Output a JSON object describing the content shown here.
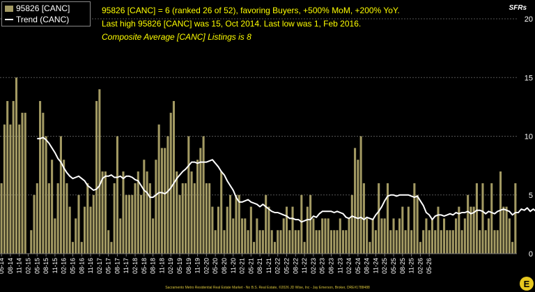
{
  "chart_data": {
    "type": "bar",
    "title_lines": [
      "95826 [CANC] = 6 (ranked 26 of 52), favoring Buyers, +500% MoM, +200% YoY.",
      "Last high 95826 [CANC] was 15, Oct 2014. Last low was 1, Feb 2016."
    ],
    "subtitle": "Composite Average [CANC] Listings is 8",
    "unit_label": "SFRs",
    "footer": "Sacramento Metro Residential Real Estate Market - No B.S. Real Estate, ©2026 JD Wise, Inc - Jay Emerson, Broker, DRE#1788488",
    "ylim": [
      0,
      20
    ],
    "yticks": [
      0,
      5,
      10,
      15,
      20
    ],
    "grid": true,
    "legend_placement": "top-left",
    "colors": {
      "bar": "#a39a63",
      "trend": "#ffffff",
      "title": "#ffff00",
      "text": "#ffffff",
      "background": "#000000",
      "footer": "#d8c33a"
    },
    "xtick_labels": [
      "05-14",
      "08-14",
      "11-14",
      "02-15",
      "05-15",
      "08-15",
      "11-15",
      "02-16",
      "05-16",
      "08-16",
      "11-16",
      "02-17",
      "05-17",
      "08-17",
      "11-17",
      "02-18",
      "05-18",
      "08-18",
      "11-18",
      "02-19",
      "05-19",
      "08-19",
      "11-19",
      "02-20",
      "05-20",
      "08-20",
      "11-20",
      "02-21",
      "05-21",
      "08-21",
      "11-21",
      "02-22",
      "05-22",
      "08-22",
      "11-22",
      "02-23",
      "05-23",
      "08-23",
      "11-23",
      "02-24",
      "05-24",
      "08-24",
      "11-24",
      "02-25",
      "05-25",
      "08-25",
      "11-25",
      "02-26",
      "05-26"
    ],
    "series": [
      {
        "name": "95826 [CANC]",
        "type": "bar",
        "values": [
          6,
          11,
          13,
          11,
          13,
          15,
          11,
          12,
          12,
          0,
          2,
          5,
          6,
          13,
          12,
          10,
          6,
          8,
          3,
          6,
          10,
          8,
          6,
          4,
          1,
          3,
          5,
          1,
          4,
          6,
          4,
          5,
          13,
          14,
          7,
          7,
          2,
          1,
          6,
          10,
          3,
          7,
          5,
          5,
          5,
          6,
          7,
          5,
          8,
          7,
          6,
          3,
          8,
          11,
          9,
          9,
          10,
          12,
          13,
          7,
          5,
          6,
          6,
          10,
          7,
          6,
          8,
          9,
          10,
          6,
          6,
          4,
          2,
          4,
          7,
          2,
          4,
          5,
          3,
          5,
          5,
          3,
          3,
          2,
          4,
          1,
          3,
          2,
          2,
          5,
          4,
          2,
          1,
          2,
          2,
          3,
          4,
          2,
          4,
          2,
          2,
          5,
          1,
          4,
          5,
          3,
          2,
          2,
          3,
          3,
          3,
          2,
          2,
          2,
          3,
          2,
          2,
          3,
          5,
          9,
          8,
          10,
          6,
          3,
          1,
          3,
          2,
          6,
          3,
          3,
          6,
          2,
          3,
          2,
          3,
          4,
          2,
          4,
          2,
          6,
          5,
          1,
          2,
          3,
          2,
          3,
          2,
          4,
          2,
          3,
          2,
          2,
          2,
          3,
          4,
          2,
          3,
          5,
          4,
          4,
          6,
          2,
          6,
          2,
          3,
          6,
          2,
          2,
          7,
          4,
          4,
          3,
          1,
          6
        ]
      },
      {
        "name": "Trend (CANC)",
        "type": "line",
        "start_index": 12,
        "values": [
          9.8,
          9.8,
          9.9,
          9.7,
          9.4,
          9.0,
          8.6,
          8.1,
          7.8,
          7.3,
          6.9,
          6.6,
          6.4,
          6.5,
          6.6,
          6.4,
          6.2,
          5.8,
          5.6,
          5.4,
          5.5,
          5.8,
          6.4,
          6.6,
          6.6,
          6.7,
          6.5,
          6.5,
          6.6,
          6.4,
          6.6,
          6.6,
          6.5,
          6.3,
          6.2,
          5.8,
          5.4,
          5.2,
          4.8,
          4.8,
          5.0,
          5.2,
          5.2,
          5.1,
          5.3,
          5.6,
          6.0,
          6.4,
          6.7,
          7.0,
          7.2,
          7.5,
          7.8,
          7.8,
          7.7,
          7.8,
          7.8,
          7.8,
          7.9,
          8.0,
          7.7,
          7.4,
          7.0,
          6.7,
          6.2,
          5.8,
          5.4,
          4.8,
          4.4,
          4.4,
          4.5,
          4.6,
          4.4,
          4.3,
          4.2,
          4.0,
          4.2,
          4.0,
          3.8,
          3.6,
          3.5,
          3.5,
          3.4,
          3.3,
          3.2,
          3.0,
          3.0,
          2.9,
          2.9,
          2.7,
          2.8,
          2.9,
          2.9,
          3.2,
          3.1,
          3.4,
          3.6,
          3.6,
          3.6,
          3.6,
          3.5,
          3.6,
          3.5,
          3.4,
          3.1,
          3.0,
          3.2,
          3.1,
          3.0,
          3.1,
          2.9,
          3.1,
          3.0,
          2.9,
          3.3,
          3.6,
          4.0,
          4.5,
          4.9,
          5.0,
          5.0,
          4.9,
          5.0,
          5.0,
          5.0,
          5.0,
          4.9,
          4.8,
          4.9,
          4.5,
          4.1,
          3.5,
          3.3,
          2.9,
          3.2,
          3.3,
          3.3,
          3.2,
          3.3,
          3.4,
          3.3,
          3.5,
          3.4,
          3.5,
          3.5,
          3.6,
          3.4,
          3.5,
          3.7,
          3.7,
          3.6,
          3.4,
          3.6,
          3.5,
          3.4,
          3.6,
          3.7,
          3.8,
          3.7,
          3.6,
          3.3,
          3.5,
          3.5,
          3.8,
          3.7,
          3.9,
          3.6,
          3.8,
          3.6,
          4.0
        ]
      }
    ]
  }
}
